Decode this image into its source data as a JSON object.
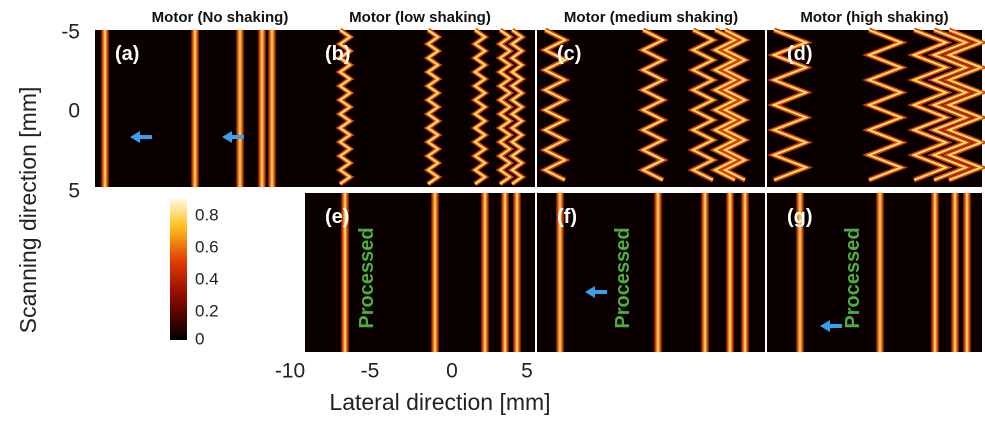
{
  "panels": [
    {
      "title": "Motor (No shaking)",
      "label": "(a)"
    },
    {
      "title": "Motor (low shaking)",
      "label": "(b)"
    },
    {
      "title": "Motor (medium shaking)",
      "label": "(c)"
    },
    {
      "title": "Motor (high shaking)",
      "label": "(d)"
    },
    {
      "label": "(e)",
      "annotation": "Processed"
    },
    {
      "label": "(f)",
      "annotation": "Processed"
    },
    {
      "label": "(g)",
      "annotation": "Processed"
    }
  ],
  "y_axis": {
    "label": "Scanning direction [mm]",
    "ticks": [
      -5,
      0,
      5
    ]
  },
  "x_axis": {
    "label": "Lateral direction [mm]",
    "ticks": [
      -10,
      -5,
      0,
      5
    ]
  },
  "colorbar": {
    "ticks": [
      0,
      0.2,
      0.4,
      0.6,
      0.8
    ]
  }
}
